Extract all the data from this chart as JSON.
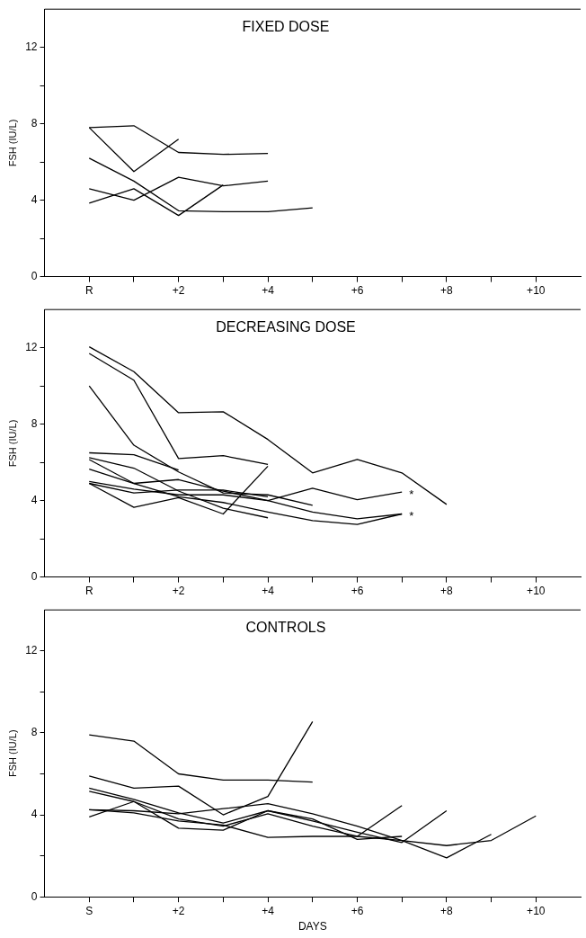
{
  "chart_data": [
    {
      "type": "line",
      "title": "FIXED DOSE",
      "ylabel": "FSH (IU/L)",
      "xlim": [
        -1,
        11
      ],
      "ylim": [
        0,
        14
      ],
      "grid": false,
      "legend": false,
      "marker": "none",
      "line_style": "solid",
      "xticks": [
        {
          "value": 0,
          "label": "R"
        },
        {
          "value": 1,
          "label": null
        },
        {
          "value": 2,
          "label": "+2"
        },
        {
          "value": 3,
          "label": null
        },
        {
          "value": 4,
          "label": "+4"
        },
        {
          "value": 5,
          "label": null
        },
        {
          "value": 6,
          "label": "+6"
        },
        {
          "value": 7,
          "label": null
        },
        {
          "value": 8,
          "label": "+8"
        },
        {
          "value": 9,
          "label": null
        },
        {
          "value": 10,
          "label": "+10"
        }
      ],
      "yticks": [
        0,
        {
          "value": 2,
          "label": null
        },
        4,
        {
          "value": 6,
          "label": null
        },
        8,
        {
          "value": 10,
          "label": null
        },
        12
      ],
      "series": [
        {
          "color": "#000000",
          "x": [
            0,
            1,
            2,
            3,
            4
          ],
          "values": [
            7.8,
            7.9,
            6.5,
            6.4,
            6.45
          ]
        },
        {
          "color": "#000000",
          "x": [
            0,
            1,
            2
          ],
          "values": [
            7.8,
            5.5,
            7.2
          ]
        },
        {
          "color": "#000000",
          "x": [
            0,
            1,
            2,
            3,
            4,
            5
          ],
          "values": [
            6.2,
            5.0,
            3.45,
            3.4,
            3.4,
            3.6
          ]
        },
        {
          "color": "#000000",
          "x": [
            0,
            1,
            2,
            3,
            4
          ],
          "values": [
            4.6,
            4.0,
            5.2,
            4.75,
            5.0
          ]
        },
        {
          "color": "#000000",
          "x": [
            0,
            1,
            2,
            3
          ],
          "values": [
            3.85,
            4.6,
            3.2,
            4.8
          ]
        }
      ]
    },
    {
      "type": "line",
      "title": "DECREASING DOSE",
      "ylabel": "FSH (IU/L)",
      "xlim": [
        -1,
        11
      ],
      "ylim": [
        0,
        14
      ],
      "grid": false,
      "legend": false,
      "marker": "none",
      "line_style": "solid",
      "xticks": [
        {
          "value": 0,
          "label": "R"
        },
        {
          "value": 1,
          "label": null
        },
        {
          "value": 2,
          "label": "+2"
        },
        {
          "value": 3,
          "label": null
        },
        {
          "value": 4,
          "label": "+4"
        },
        {
          "value": 5,
          "label": null
        },
        {
          "value": 6,
          "label": "+6"
        },
        {
          "value": 7,
          "label": null
        },
        {
          "value": 8,
          "label": "+8"
        },
        {
          "value": 9,
          "label": null
        },
        {
          "value": 10,
          "label": "+10"
        }
      ],
      "yticks": [
        0,
        {
          "value": 2,
          "label": null
        },
        4,
        {
          "value": 6,
          "label": null
        },
        8,
        {
          "value": 10,
          "label": null
        },
        12
      ],
      "annotations": [
        {
          "text": "*",
          "x": 7,
          "y": 4.45
        },
        {
          "text": "*",
          "x": 7,
          "y": 3.3
        }
      ],
      "series": [
        {
          "color": "#000000",
          "x": [
            0,
            1,
            2,
            3,
            4,
            5,
            6,
            7,
            8
          ],
          "values": [
            12.05,
            10.75,
            8.6,
            8.65,
            7.2,
            5.45,
            6.15,
            5.45,
            3.8
          ]
        },
        {
          "color": "#000000",
          "x": [
            0,
            1,
            2,
            3,
            4
          ],
          "values": [
            11.7,
            10.3,
            6.2,
            6.35,
            5.9
          ]
        },
        {
          "color": "#000000",
          "x": [
            0,
            1,
            2,
            3,
            4,
            5
          ],
          "values": [
            10.0,
            6.9,
            5.5,
            4.4,
            4.3,
            3.75
          ]
        },
        {
          "color": "#000000",
          "x": [
            0,
            1,
            2
          ],
          "values": [
            6.5,
            6.4,
            5.6
          ]
        },
        {
          "color": "#000000",
          "x": [
            0,
            1,
            2,
            3,
            4
          ],
          "values": [
            6.25,
            5.7,
            4.5,
            3.6,
            3.1
          ]
        },
        {
          "color": "#000000",
          "x": [
            0,
            1,
            2,
            3,
            4,
            5,
            6,
            7
          ],
          "values": [
            6.15,
            4.9,
            5.1,
            4.5,
            4.0,
            4.65,
            4.05,
            4.45
          ]
        },
        {
          "color": "#000000",
          "x": [
            0,
            1,
            2,
            3,
            4,
            5,
            6,
            7
          ],
          "values": [
            5.65,
            4.9,
            4.2,
            3.9,
            3.4,
            2.95,
            2.75,
            3.3
          ]
        },
        {
          "color": "#000000",
          "x": [
            0,
            1,
            2,
            3,
            4,
            5,
            6,
            7
          ],
          "values": [
            5.0,
            4.6,
            4.3,
            4.3,
            4.0,
            3.4,
            3.05,
            3.3
          ]
        },
        {
          "color": "#000000",
          "x": [
            0,
            1,
            2,
            3,
            4
          ],
          "values": [
            4.9,
            4.4,
            4.55,
            4.55,
            4.2
          ]
        },
        {
          "color": "#000000",
          "x": [
            0,
            1,
            2,
            3,
            4
          ],
          "values": [
            4.9,
            3.65,
            4.15,
            3.3,
            5.8
          ]
        }
      ]
    },
    {
      "type": "line",
      "title": "CONTROLS",
      "xlabel": "DAYS",
      "ylabel": "FSH (IU/L)",
      "xlim": [
        -1,
        11
      ],
      "ylim": [
        0,
        14
      ],
      "grid": false,
      "legend": false,
      "marker": "none",
      "line_style": "solid",
      "xticks": [
        {
          "value": 0,
          "label": "S"
        },
        {
          "value": 1,
          "label": null
        },
        {
          "value": 2,
          "label": "+2"
        },
        {
          "value": 3,
          "label": null
        },
        {
          "value": 4,
          "label": "+4"
        },
        {
          "value": 5,
          "label": null
        },
        {
          "value": 6,
          "label": "+6"
        },
        {
          "value": 7,
          "label": null
        },
        {
          "value": 8,
          "label": "+8"
        },
        {
          "value": 9,
          "label": null
        },
        {
          "value": 10,
          "label": "+10"
        }
      ],
      "yticks": [
        0,
        {
          "value": 2,
          "label": null
        },
        4,
        {
          "value": 6,
          "label": null
        },
        8,
        {
          "value": 10,
          "label": null
        },
        12
      ],
      "series": [
        {
          "color": "#000000",
          "x": [
            0,
            1,
            2,
            3,
            4,
            5
          ],
          "values": [
            7.9,
            7.6,
            6.0,
            5.7,
            5.7,
            5.6
          ]
        },
        {
          "color": "#000000",
          "x": [
            0,
            1,
            2,
            3,
            4,
            5
          ],
          "values": [
            5.9,
            5.3,
            5.4,
            4.0,
            4.9,
            8.55
          ]
        },
        {
          "color": "#000000",
          "x": [
            0,
            1,
            2,
            3,
            4,
            5,
            6,
            7,
            8
          ],
          "values": [
            5.3,
            4.75,
            4.1,
            3.6,
            4.2,
            3.7,
            3.15,
            2.65,
            4.2
          ]
        },
        {
          "color": "#000000",
          "x": [
            0,
            1,
            2,
            3,
            4,
            5,
            6,
            7
          ],
          "values": [
            5.15,
            4.65,
            3.8,
            3.45,
            4.05,
            3.45,
            2.95,
            4.45
          ]
        },
        {
          "color": "#000000",
          "x": [
            0,
            1,
            2,
            3,
            4,
            5,
            6,
            7,
            8,
            9
          ],
          "values": [
            4.25,
            4.2,
            4.05,
            4.3,
            4.55,
            4.05,
            3.45,
            2.75,
            1.9,
            3.05
          ]
        },
        {
          "color": "#000000",
          "x": [
            0,
            1,
            2,
            3,
            4,
            5,
            6,
            7
          ],
          "values": [
            3.9,
            4.65,
            3.35,
            3.25,
            4.2,
            3.8,
            2.8,
            2.95
          ]
        },
        {
          "color": "#000000",
          "x": [
            0,
            1,
            2,
            3,
            4,
            5,
            6,
            7,
            8,
            9,
            10
          ],
          "values": [
            4.25,
            4.1,
            3.7,
            3.5,
            2.9,
            2.95,
            2.95,
            2.75,
            2.5,
            2.75,
            3.95
          ]
        }
      ]
    }
  ]
}
